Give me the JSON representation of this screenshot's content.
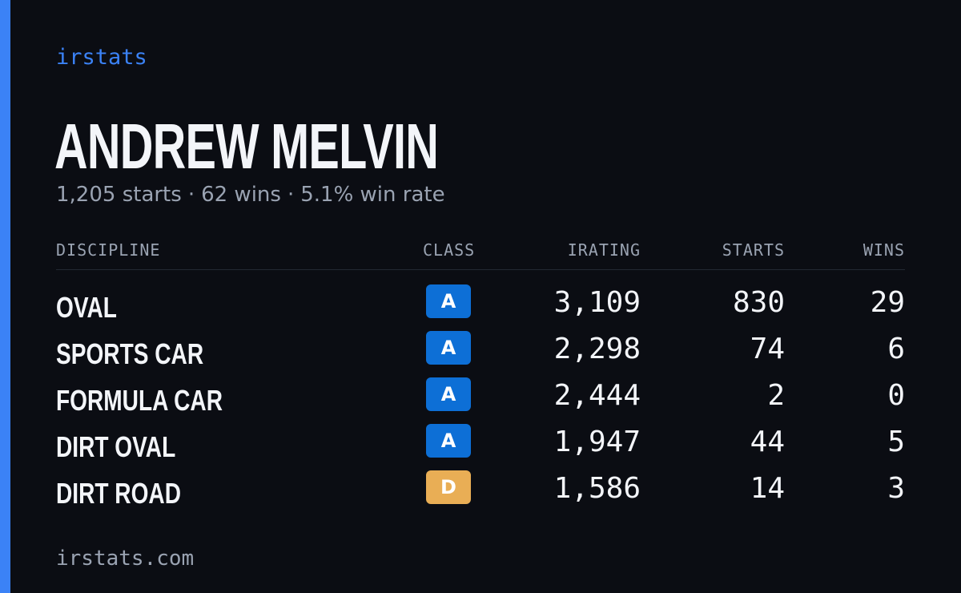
{
  "brand": "irstats",
  "driver": {
    "name": "ANDREW MELVIN",
    "starts_text": "1,205 starts",
    "wins_text": "62 wins",
    "win_rate_text": "5.1% win rate",
    "separator": "·"
  },
  "table": {
    "headers": {
      "discipline": "DISCIPLINE",
      "class": "CLASS",
      "irating": "IRATING",
      "starts": "STARTS",
      "wins": "WINS"
    },
    "rows": [
      {
        "discipline": "OVAL",
        "class": "A",
        "class_color": "#0d6fd6",
        "irating": "3,109",
        "starts": "830",
        "wins": "29"
      },
      {
        "discipline": "SPORTS CAR",
        "class": "A",
        "class_color": "#0d6fd6",
        "irating": "2,298",
        "starts": "74",
        "wins": "6"
      },
      {
        "discipline": "FORMULA CAR",
        "class": "A",
        "class_color": "#0d6fd6",
        "irating": "2,444",
        "starts": "2",
        "wins": "0"
      },
      {
        "discipline": "DIRT OVAL",
        "class": "A",
        "class_color": "#0d6fd6",
        "irating": "1,947",
        "starts": "44",
        "wins": "5"
      },
      {
        "discipline": "DIRT ROAD",
        "class": "D",
        "class_color": "#e9ae55",
        "irating": "1,586",
        "starts": "14",
        "wins": "3"
      }
    ]
  },
  "footer": "irstats.com",
  "colors": {
    "accent": "#3b82f6",
    "background": "#0b0d13",
    "muted_text": "#9aa3b2"
  }
}
